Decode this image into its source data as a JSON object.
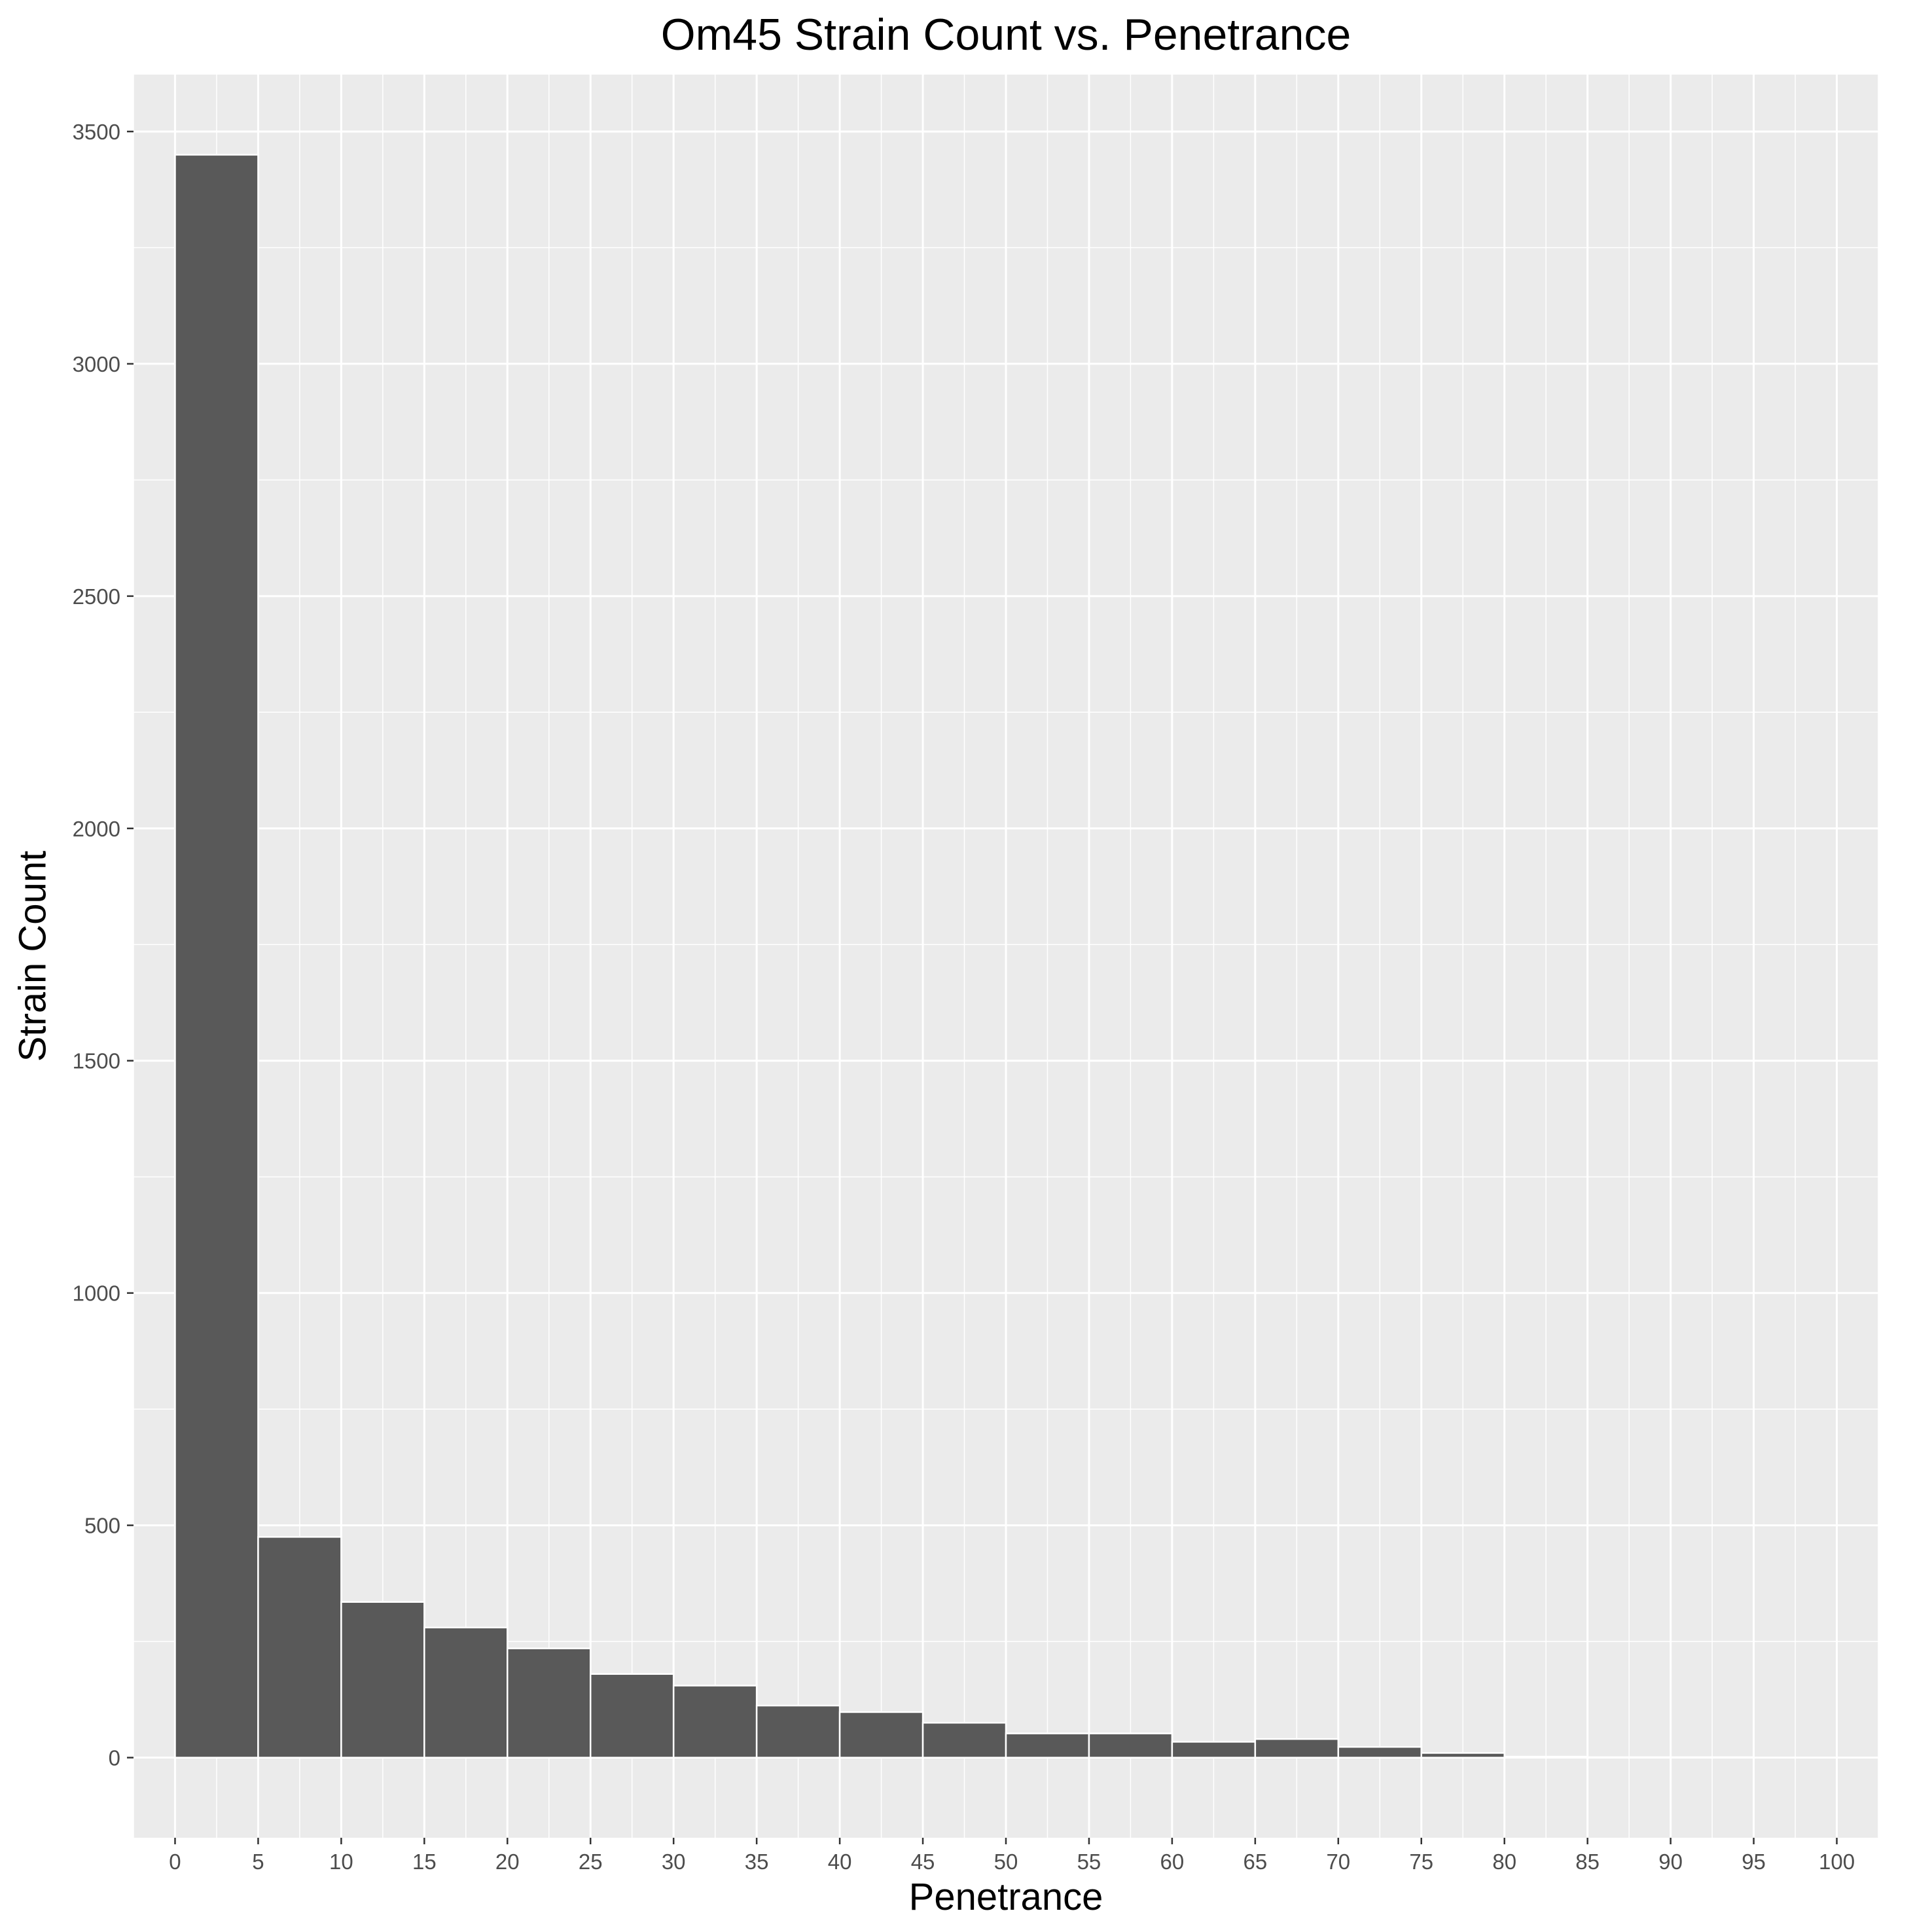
{
  "chart_data": {
    "type": "bar",
    "title": "Om45 Strain Count vs. Penetrance",
    "xlabel": "Penetrance",
    "ylabel": "Strain Count",
    "xlim": [
      -2.5,
      102.5
    ],
    "ylim": [
      -172.5,
      3622.5
    ],
    "x_ticks": [
      0,
      5,
      10,
      15,
      20,
      25,
      30,
      35,
      40,
      45,
      50,
      55,
      60,
      65,
      70,
      75,
      80,
      85,
      90,
      95,
      100
    ],
    "x_tick_labels": [
      "0",
      "5",
      "10",
      "15",
      "20",
      "25",
      "30",
      "35",
      "40",
      "45",
      "50",
      "55",
      "60",
      "65",
      "70",
      "75",
      "80",
      "85",
      "90",
      "95",
      "100"
    ],
    "y_ticks": [
      0,
      500,
      1000,
      1500,
      2000,
      2500,
      3000,
      3500
    ],
    "y_tick_labels": [
      "0",
      "500",
      "1000",
      "1500",
      "2000",
      "2500",
      "3000",
      "3500"
    ],
    "bin_width": 5,
    "bins": [
      {
        "start": 0,
        "end": 5,
        "value": 3450
      },
      {
        "start": 5,
        "end": 10,
        "value": 475
      },
      {
        "start": 10,
        "end": 15,
        "value": 335
      },
      {
        "start": 15,
        "end": 20,
        "value": 280
      },
      {
        "start": 20,
        "end": 25,
        "value": 235
      },
      {
        "start": 25,
        "end": 30,
        "value": 180
      },
      {
        "start": 30,
        "end": 35,
        "value": 155
      },
      {
        "start": 35,
        "end": 40,
        "value": 112
      },
      {
        "start": 40,
        "end": 45,
        "value": 98
      },
      {
        "start": 45,
        "end": 50,
        "value": 75
      },
      {
        "start": 50,
        "end": 55,
        "value": 52
      },
      {
        "start": 55,
        "end": 60,
        "value": 52
      },
      {
        "start": 60,
        "end": 65,
        "value": 34
      },
      {
        "start": 65,
        "end": 70,
        "value": 40
      },
      {
        "start": 70,
        "end": 75,
        "value": 23
      },
      {
        "start": 75,
        "end": 80,
        "value": 10
      },
      {
        "start": 80,
        "end": 85,
        "value": 2
      },
      {
        "start": 85,
        "end": 90,
        "value": 1
      },
      {
        "start": 90,
        "end": 95,
        "value": 1
      },
      {
        "start": 95,
        "end": 100,
        "value": 0
      }
    ],
    "grid": true,
    "legend": "none",
    "colors": {
      "bar_fill": "#595959",
      "bar_outline": "#ffffff",
      "panel_background": "#ebebeb",
      "grid": "#ffffff"
    }
  }
}
